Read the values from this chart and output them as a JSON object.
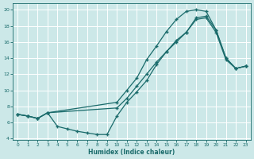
{
  "xlabel": "Humidex (Indice chaleur)",
  "bg_color": "#cce8e8",
  "grid_color": "#ffffff",
  "line_color": "#1a6b6b",
  "xlim": [
    -0.5,
    23.5
  ],
  "ylim": [
    3.8,
    20.8
  ],
  "xticks": [
    0,
    1,
    2,
    3,
    4,
    5,
    6,
    7,
    8,
    9,
    10,
    11,
    12,
    13,
    14,
    15,
    16,
    17,
    18,
    19,
    20,
    21,
    22,
    23
  ],
  "yticks": [
    4,
    6,
    8,
    10,
    12,
    14,
    16,
    18,
    20
  ],
  "line_upper_x": [
    0,
    1,
    2,
    3,
    10,
    11,
    12,
    13,
    14,
    15,
    16,
    17,
    18,
    19,
    20,
    21,
    22,
    23
  ],
  "line_upper_y": [
    7.0,
    6.8,
    6.5,
    7.2,
    8.5,
    10.0,
    11.5,
    13.8,
    15.5,
    17.3,
    18.8,
    19.8,
    20.0,
    19.8,
    17.5,
    14.0,
    12.7,
    13.0
  ],
  "line_mid_x": [
    0,
    1,
    2,
    3,
    10,
    11,
    12,
    13,
    14,
    15,
    16,
    17,
    18,
    19,
    20,
    21,
    22,
    23
  ],
  "line_mid_y": [
    7.0,
    6.8,
    6.5,
    7.2,
    7.8,
    9.0,
    10.5,
    12.0,
    13.5,
    14.8,
    16.0,
    17.2,
    19.0,
    19.2,
    17.5,
    14.0,
    12.7,
    13.0
  ],
  "line_low_x": [
    0,
    1,
    2,
    3,
    4,
    5,
    6,
    7,
    8,
    9,
    10,
    11,
    12,
    13,
    14,
    15,
    16,
    17,
    18,
    19,
    20,
    21,
    22,
    23
  ],
  "line_low_y": [
    7.0,
    6.8,
    6.5,
    7.2,
    5.5,
    5.2,
    4.9,
    4.7,
    4.5,
    4.5,
    6.8,
    8.5,
    9.8,
    11.2,
    13.2,
    14.8,
    16.2,
    17.2,
    18.8,
    19.0,
    17.2,
    13.8,
    12.7,
    13.0
  ]
}
